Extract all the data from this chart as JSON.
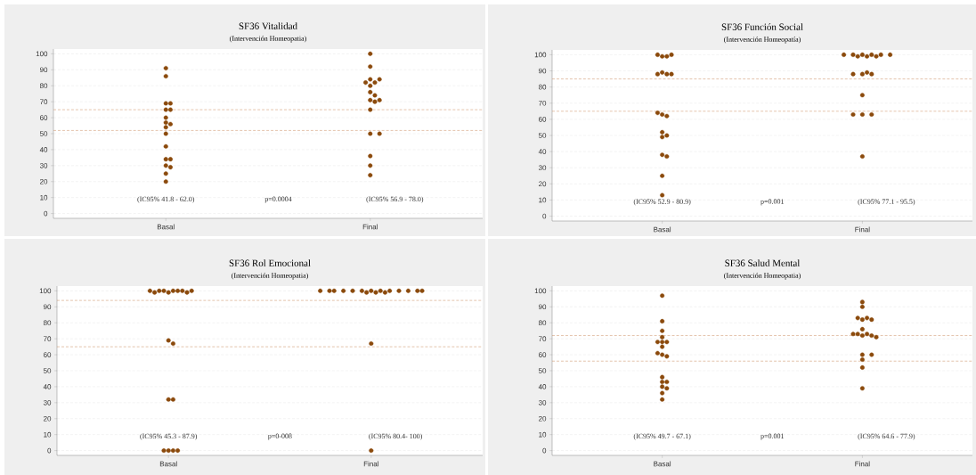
{
  "chart_data": [
    {
      "type": "scatter",
      "title": "SF36 Vitalidad",
      "subtitle": "(Intervención Homeopatia)",
      "marker": "circle",
      "grid": "y",
      "categories": [
        "Basal",
        "Final"
      ],
      "ylim": [
        -3,
        103
      ],
      "yticks": [
        0,
        10,
        20,
        30,
        40,
        50,
        60,
        70,
        80,
        90,
        100
      ],
      "series": [
        {
          "color": "#8b4a0c",
          "x": [
            "Basal",
            "Basal",
            "Basal",
            "Basal",
            "Basal",
            "Basal",
            "Basal",
            "Basal",
            "Basal",
            "Basal",
            "Basal",
            "Basal",
            "Basal",
            "Basal",
            "Basal",
            "Basal",
            "Basal",
            "Basal",
            "Final",
            "Final",
            "Final",
            "Final",
            "Final",
            "Final",
            "Final",
            "Final",
            "Final",
            "Final",
            "Final",
            "Final",
            "Final",
            "Final",
            "Final",
            "Final",
            "Final",
            "Final"
          ],
          "values": [
            91,
            86,
            69,
            65,
            69,
            65,
            54,
            60,
            57,
            56,
            50,
            42,
            34,
            30,
            34,
            29,
            25,
            20,
            100,
            92,
            80,
            84,
            82,
            84,
            82,
            76,
            71,
            70,
            74,
            71,
            65,
            50,
            50,
            36,
            30,
            24
          ]
        }
      ],
      "ref_lines": [
        {
          "axis": "y",
          "value": 65,
          "color": "#c8885a",
          "line_style": "dashed"
        },
        {
          "axis": "y",
          "value": 52,
          "color": "#c8885a",
          "line_style": "dashed"
        }
      ],
      "annotations": [
        "(IC95% 41.8 - 62.0)",
        "p=0.0004",
        "(IC95% 56.9 - 78.0)"
      ]
    },
    {
      "type": "scatter",
      "title": "SF36 Función Social",
      "subtitle": "(Intervención Homeopatía)",
      "marker": "circle",
      "grid": "y",
      "categories": [
        "Basal",
        "Final"
      ],
      "ylim": [
        -3,
        103
      ],
      "yticks": [
        0,
        10,
        20,
        30,
        40,
        50,
        60,
        70,
        80,
        90,
        100
      ],
      "series": [
        {
          "color": "#8b4a0c",
          "x": [
            "Basal",
            "Basal",
            "Basal",
            "Basal",
            "Basal",
            "Basal",
            "Basal",
            "Basal",
            "Basal",
            "Basal",
            "Basal",
            "Basal",
            "Basal",
            "Basal",
            "Basal",
            "Basal",
            "Basal",
            "Basal",
            "Final",
            "Final",
            "Final",
            "Final",
            "Final",
            "Final",
            "Final",
            "Final",
            "Final",
            "Final",
            "Final",
            "Final",
            "Final",
            "Final",
            "Final",
            "Final",
            "Final",
            "Final"
          ],
          "values": [
            99,
            99,
            100,
            100,
            89,
            88,
            88,
            88,
            63,
            62,
            64,
            49,
            50,
            52,
            38,
            37,
            25,
            13,
            100,
            99,
            100,
            100,
            100,
            99,
            99,
            100,
            100,
            88,
            88,
            88,
            89,
            75,
            63,
            63,
            63,
            37
          ]
        }
      ],
      "ref_lines": [
        {
          "axis": "y",
          "value": 85,
          "color": "#c8885a",
          "line_style": "dashed"
        },
        {
          "axis": "y",
          "value": 65,
          "color": "#c8885a",
          "line_style": "dashed"
        }
      ],
      "annotations": [
        "(IC95% 52.9 - 80.9)",
        "p=0.001",
        "(IC95% 77.1 - 95.5)"
      ]
    },
    {
      "type": "scatter",
      "title": "SF36 Rol Emocional",
      "subtitle": "(Intervención Homeopatia)",
      "marker": "circle",
      "grid": "y",
      "categories": [
        "Basal",
        "Final"
      ],
      "ylim": [
        -3,
        103
      ],
      "yticks": [
        0,
        10,
        20,
        30,
        40,
        50,
        60,
        70,
        80,
        90,
        100
      ],
      "series": [
        {
          "color": "#8b4a0c",
          "x": [
            "Basal",
            "Basal",
            "Basal",
            "Basal",
            "Basal",
            "Basal",
            "Basal",
            "Basal",
            "Basal",
            "Basal",
            "Basal",
            "Basal",
            "Basal",
            "Basal",
            "Basal",
            "Basal",
            "Basal",
            "Basal",
            "Final",
            "Final",
            "Final",
            "Final",
            "Final",
            "Final",
            "Final",
            "Final",
            "Final",
            "Final",
            "Final",
            "Final",
            "Final",
            "Final",
            "Final",
            "Final",
            "Final",
            "Final"
          ],
          "values": [
            99,
            100,
            100,
            100,
            100,
            100,
            99,
            99,
            100,
            100,
            69,
            67,
            32,
            32,
            0,
            0,
            0,
            0,
            100,
            100,
            100,
            100,
            100,
            100,
            100,
            100,
            99,
            100,
            100,
            100,
            99,
            99,
            100,
            100,
            67,
            0
          ]
        }
      ],
      "ref_lines": [
        {
          "axis": "y",
          "value": 94,
          "color": "#c8885a",
          "line_style": "dashed"
        },
        {
          "axis": "y",
          "value": 65,
          "color": "#c8885a",
          "line_style": "dashed"
        }
      ],
      "annotations": [
        "(IC95% 45.3 - 87.9)",
        "p=0-008",
        "(IC95% 80.4- 100)"
      ]
    },
    {
      "type": "scatter",
      "title": "SF36 Salud Mental",
      "subtitle": "(Intervención Homeopatia)",
      "marker": "circle",
      "grid": "y",
      "categories": [
        "Basal",
        "Final"
      ],
      "ylim": [
        -3,
        103
      ],
      "yticks": [
        0,
        10,
        20,
        30,
        40,
        50,
        60,
        70,
        80,
        90,
        100
      ],
      "series": [
        {
          "color": "#8b4a0c",
          "x": [
            "Basal",
            "Basal",
            "Basal",
            "Basal",
            "Basal",
            "Basal",
            "Basal",
            "Basal",
            "Basal",
            "Basal",
            "Basal",
            "Basal",
            "Basal",
            "Basal",
            "Basal",
            "Basal",
            "Basal",
            "Basal",
            "Final",
            "Final",
            "Final",
            "Final",
            "Final",
            "Final",
            "Final",
            "Final",
            "Final",
            "Final",
            "Final",
            "Final",
            "Final",
            "Final",
            "Final",
            "Final",
            "Final",
            "Final"
          ],
          "values": [
            97,
            81,
            75,
            71,
            68,
            68,
            68,
            65,
            60,
            59,
            61,
            46,
            43,
            43,
            40,
            39,
            36,
            32,
            93,
            90,
            82,
            83,
            82,
            83,
            76,
            72,
            73,
            72,
            73,
            73,
            71,
            60,
            60,
            57,
            52,
            39
          ]
        }
      ],
      "ref_lines": [
        {
          "axis": "y",
          "value": 72,
          "color": "#c8885a",
          "line_style": "dashed"
        },
        {
          "axis": "y",
          "value": 56,
          "color": "#c8885a",
          "line_style": "dashed"
        }
      ],
      "annotations": [
        "(IC95% 49.7 - 67.1)",
        "p=0.001",
        "(IC95% 64.6 - 77.9)"
      ]
    }
  ]
}
